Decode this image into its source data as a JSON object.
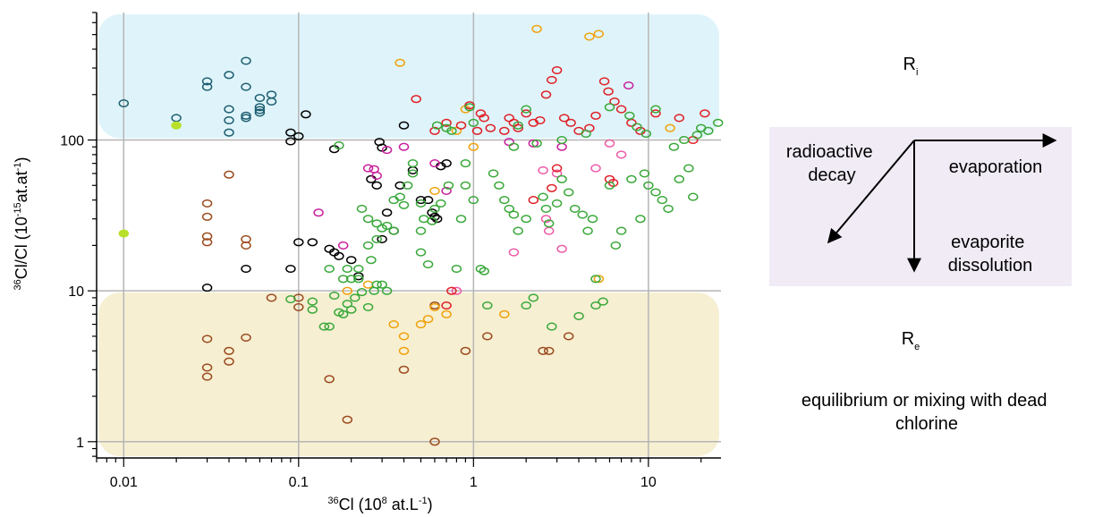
{
  "chart_data": {
    "type": "scatter",
    "x_scale": "log",
    "y_scale": "log",
    "xlim": [
      0.007,
      26
    ],
    "ylim": [
      0.78,
      700
    ],
    "x_ticks": [
      {
        "value": 0.01,
        "label": "0.01"
      },
      {
        "value": 0.1,
        "label": "0.1"
      },
      {
        "value": 1,
        "label": "1"
      },
      {
        "value": 10,
        "label": "10"
      }
    ],
    "y_ticks": [
      {
        "value": 1,
        "label": "1"
      },
      {
        "value": 10,
        "label": "10"
      },
      {
        "value": 100,
        "label": "100"
      }
    ],
    "xlabel": {
      "sup": "36",
      "main": "Cl (10",
      "sup2": "8",
      "tail": " at.L",
      "sup3": "-1",
      "end": ")"
    },
    "ylabel": {
      "sup": "36",
      "main": "Cl/Cl (10",
      "sup2": "-15",
      "tail": "at.at",
      "sup3": "-1",
      "end": ")"
    },
    "grid": true,
    "bands": [
      {
        "name": "Ri",
        "y_from": 100,
        "y_to": 700,
        "color": "#dff4fa"
      },
      {
        "name": "Re",
        "y_from": 0.78,
        "y_to": 10,
        "color": "#f6efd2"
      }
    ],
    "series": [
      {
        "color": "#1d5e70",
        "points": [
          [
            0.01,
            175
          ],
          [
            0.02,
            140
          ],
          [
            0.03,
            245
          ],
          [
            0.03,
            225
          ],
          [
            0.04,
            270
          ],
          [
            0.04,
            160
          ],
          [
            0.04,
            135
          ],
          [
            0.04,
            112
          ],
          [
            0.05,
            335
          ],
          [
            0.05,
            225
          ],
          [
            0.05,
            145
          ],
          [
            0.05,
            140
          ],
          [
            0.06,
            190
          ],
          [
            0.06,
            165
          ],
          [
            0.06,
            158
          ],
          [
            0.06,
            152
          ],
          [
            0.07,
            200
          ],
          [
            0.07,
            180
          ]
        ]
      },
      {
        "color": "#b8e02a",
        "filled": true,
        "points": [
          [
            0.02,
            125
          ],
          [
            0.01,
            24
          ]
        ]
      },
      {
        "color": "#9b4a1e",
        "points": [
          [
            0.03,
            38
          ],
          [
            0.03,
            31
          ],
          [
            0.03,
            23
          ],
          [
            0.03,
            21
          ],
          [
            0.04,
            59
          ],
          [
            0.05,
            22
          ],
          [
            0.05,
            20
          ],
          [
            0.03,
            4.8
          ],
          [
            0.03,
            3.1
          ],
          [
            0.03,
            2.7
          ],
          [
            0.04,
            4
          ],
          [
            0.04,
            3.4
          ],
          [
            0.05,
            4.9
          ],
          [
            0.07,
            9
          ],
          [
            0.1,
            9
          ],
          [
            0.1,
            7.8
          ],
          [
            0.15,
            2.6
          ],
          [
            0.19,
            1.4
          ],
          [
            0.4,
            3
          ],
          [
            0.6,
            1
          ],
          [
            0.6,
            8
          ],
          [
            0.9,
            4
          ],
          [
            1.2,
            5
          ],
          [
            2.5,
            4
          ],
          [
            2.7,
            4
          ],
          [
            3.5,
            5
          ]
        ]
      },
      {
        "color": "#000000",
        "points": [
          [
            0.03,
            10.5
          ],
          [
            0.05,
            14
          ],
          [
            0.09,
            14
          ],
          [
            0.1,
            21
          ],
          [
            0.09,
            112
          ],
          [
            0.09,
            98
          ],
          [
            0.1,
            106
          ],
          [
            0.11,
            148
          ],
          [
            0.12,
            21
          ],
          [
            0.16,
            87
          ],
          [
            0.15,
            19
          ],
          [
            0.16,
            18
          ],
          [
            0.17,
            17
          ],
          [
            0.2,
            16
          ],
          [
            0.22,
            12.5
          ],
          [
            0.26,
            55
          ],
          [
            0.28,
            50
          ],
          [
            0.29,
            97
          ],
          [
            0.3,
            89
          ],
          [
            0.3,
            22
          ],
          [
            0.32,
            33
          ],
          [
            0.35,
            25
          ],
          [
            0.38,
            50
          ],
          [
            0.4,
            125
          ],
          [
            0.45,
            63
          ],
          [
            0.5,
            40
          ],
          [
            0.55,
            40
          ],
          [
            0.58,
            33
          ],
          [
            0.6,
            31
          ],
          [
            0.62,
            30
          ],
          [
            0.65,
            67
          ],
          [
            0.7,
            70
          ]
        ]
      },
      {
        "color": "#c8209c",
        "points": [
          [
            0.13,
            33
          ],
          [
            0.18,
            20
          ],
          [
            0.25,
            65
          ],
          [
            0.27,
            64
          ],
          [
            0.28,
            58
          ],
          [
            0.32,
            86
          ],
          [
            0.4,
            90
          ],
          [
            0.6,
            70
          ],
          [
            0.7,
            46
          ],
          [
            1.6,
            97
          ],
          [
            2.2,
            95
          ],
          [
            3.2,
            90
          ],
          [
            7.7,
            230
          ]
        ]
      },
      {
        "color": "#ed5aa8",
        "points": [
          [
            0.8,
            10
          ],
          [
            1.7,
            18
          ],
          [
            2.5,
            63
          ],
          [
            2.6,
            30
          ],
          [
            2.7,
            25
          ],
          [
            3,
            60
          ],
          [
            3.2,
            19
          ],
          [
            5,
            65
          ],
          [
            6,
            95
          ],
          [
            7,
            80
          ]
        ]
      },
      {
        "color": "#f0a20c",
        "points": [
          [
            0.19,
            10
          ],
          [
            0.25,
            11
          ],
          [
            0.35,
            6
          ],
          [
            0.4,
            5
          ],
          [
            0.4,
            4
          ],
          [
            0.5,
            6
          ],
          [
            0.55,
            6.5
          ],
          [
            0.6,
            7.8
          ],
          [
            0.6,
            46
          ],
          [
            0.7,
            7
          ],
          [
            0.8,
            115
          ],
          [
            0.9,
            160
          ],
          [
            1,
            90
          ],
          [
            1.5,
            7
          ],
          [
            0.38,
            325
          ],
          [
            2.3,
            545
          ],
          [
            4.6,
            485
          ],
          [
            5.2,
            505
          ],
          [
            5.2,
            12
          ],
          [
            13.3,
            120
          ]
        ]
      },
      {
        "color": "#e01f26",
        "points": [
          [
            0.47,
            187
          ],
          [
            0.6,
            115
          ],
          [
            0.7,
            130
          ],
          [
            0.85,
            125
          ],
          [
            0.95,
            170
          ],
          [
            1.05,
            115
          ],
          [
            1.1,
            150
          ],
          [
            1.15,
            140
          ],
          [
            1.25,
            120
          ],
          [
            1.5,
            115
          ],
          [
            1.6,
            140
          ],
          [
            1.7,
            130
          ],
          [
            1.8,
            120
          ],
          [
            2,
            150
          ],
          [
            2.2,
            130
          ],
          [
            2.4,
            135
          ],
          [
            2.6,
            200
          ],
          [
            2.8,
            250
          ],
          [
            3,
            290
          ],
          [
            3.3,
            140
          ],
          [
            3.6,
            130
          ],
          [
            4,
            115
          ],
          [
            4.6,
            120
          ],
          [
            5,
            145
          ],
          [
            5.6,
            245
          ],
          [
            5.9,
            210
          ],
          [
            6.4,
            180
          ],
          [
            7,
            160
          ],
          [
            8,
            130
          ],
          [
            9,
            115
          ],
          [
            11,
            150
          ],
          [
            15,
            140
          ],
          [
            18,
            100
          ],
          [
            21,
            150
          ],
          [
            2.2,
            40
          ],
          [
            2.8,
            48
          ],
          [
            3,
            65
          ],
          [
            6,
            55
          ],
          [
            6.3,
            52
          ],
          [
            0.7,
            8
          ],
          [
            0.75,
            10
          ]
        ]
      },
      {
        "color": "#3aa83a",
        "points": [
          [
            0.09,
            8.8
          ],
          [
            0.12,
            8.5
          ],
          [
            0.12,
            7.5
          ],
          [
            0.14,
            5.8
          ],
          [
            0.15,
            5.8
          ],
          [
            0.15,
            14
          ],
          [
            0.16,
            9.3
          ],
          [
            0.17,
            7.2
          ],
          [
            0.18,
            7
          ],
          [
            0.19,
            8.2
          ],
          [
            0.2,
            7.5
          ],
          [
            0.21,
            9
          ],
          [
            0.22,
            12
          ],
          [
            0.23,
            9.8
          ],
          [
            0.25,
            7.8
          ],
          [
            0.27,
            10
          ],
          [
            0.28,
            11
          ],
          [
            0.3,
            11
          ],
          [
            0.32,
            10
          ],
          [
            0.17,
            92
          ],
          [
            0.18,
            12
          ],
          [
            0.19,
            14
          ],
          [
            0.2,
            12
          ],
          [
            0.22,
            14
          ],
          [
            0.23,
            35
          ],
          [
            0.25,
            30
          ],
          [
            0.25,
            20
          ],
          [
            0.26,
            16
          ],
          [
            0.28,
            28
          ],
          [
            0.28,
            22
          ],
          [
            0.3,
            26
          ],
          [
            0.32,
            27
          ],
          [
            0.35,
            40
          ],
          [
            0.35,
            25
          ],
          [
            0.38,
            42
          ],
          [
            0.4,
            37
          ],
          [
            0.42,
            50
          ],
          [
            0.45,
            60
          ],
          [
            0.45,
            70
          ],
          [
            0.5,
            38
          ],
          [
            0.5,
            25
          ],
          [
            0.5,
            18
          ],
          [
            0.52,
            30
          ],
          [
            0.55,
            15
          ],
          [
            0.58,
            29
          ],
          [
            0.6,
            35
          ],
          [
            0.62,
            125
          ],
          [
            0.65,
            38
          ],
          [
            0.7,
            120
          ],
          [
            0.72,
            50
          ],
          [
            0.75,
            115
          ],
          [
            0.8,
            14
          ],
          [
            0.85,
            30
          ],
          [
            0.9,
            50
          ],
          [
            0.9,
            70
          ],
          [
            0.95,
            165
          ],
          [
            1,
            40
          ],
          [
            1,
            130
          ],
          [
            1.1,
            14
          ],
          [
            1.15,
            13.5
          ],
          [
            1.2,
            8
          ],
          [
            1.3,
            60
          ],
          [
            1.4,
            50
          ],
          [
            1.5,
            40
          ],
          [
            1.6,
            35
          ],
          [
            1.7,
            32
          ],
          [
            1.8,
            25
          ],
          [
            2,
            30
          ],
          [
            2,
            8
          ],
          [
            2.2,
            9
          ],
          [
            2.5,
            42
          ],
          [
            2.6,
            35
          ],
          [
            2.7,
            28
          ],
          [
            2.8,
            5.8
          ],
          [
            3,
            38
          ],
          [
            3.2,
            55
          ],
          [
            3.5,
            45
          ],
          [
            3.8,
            35
          ],
          [
            4,
            6.8
          ],
          [
            4.2,
            32
          ],
          [
            4.5,
            25
          ],
          [
            4.8,
            30
          ],
          [
            5,
            12
          ],
          [
            5,
            8
          ],
          [
            5.5,
            8.5
          ],
          [
            6,
            50
          ],
          [
            6.5,
            20
          ],
          [
            7,
            25
          ],
          [
            8,
            55
          ],
          [
            9,
            30
          ],
          [
            9.5,
            60
          ],
          [
            10,
            50
          ],
          [
            11,
            45
          ],
          [
            12,
            40
          ],
          [
            13,
            35
          ],
          [
            15,
            55
          ],
          [
            17,
            65
          ],
          [
            18,
            42
          ],
          [
            20,
            120
          ],
          [
            22,
            115
          ],
          [
            25,
            130
          ],
          [
            19,
            108
          ],
          [
            16,
            100
          ],
          [
            14,
            90
          ],
          [
            11,
            160
          ],
          [
            1.7,
            90
          ],
          [
            2.3,
            95
          ],
          [
            4.4,
            110
          ],
          [
            6,
            165
          ],
          [
            7.8,
            145
          ],
          [
            8.6,
            122
          ],
          [
            9.7,
            110
          ],
          [
            3.2,
            100
          ],
          [
            2,
            160
          ],
          [
            1.8,
            125
          ]
        ]
      }
    ]
  },
  "diagram": {
    "top_label_main": "R",
    "top_label_sub": "i",
    "bottom_label_main": "R",
    "bottom_label_sub": "e",
    "arrow_decay": [
      "radioactive",
      "decay"
    ],
    "arrow_evaporation": "evaporation",
    "arrow_dissolution": [
      "evaporite",
      "dissolution"
    ],
    "equilibrium": [
      "equilibrium or mixing with dead",
      "chlorine"
    ]
  }
}
